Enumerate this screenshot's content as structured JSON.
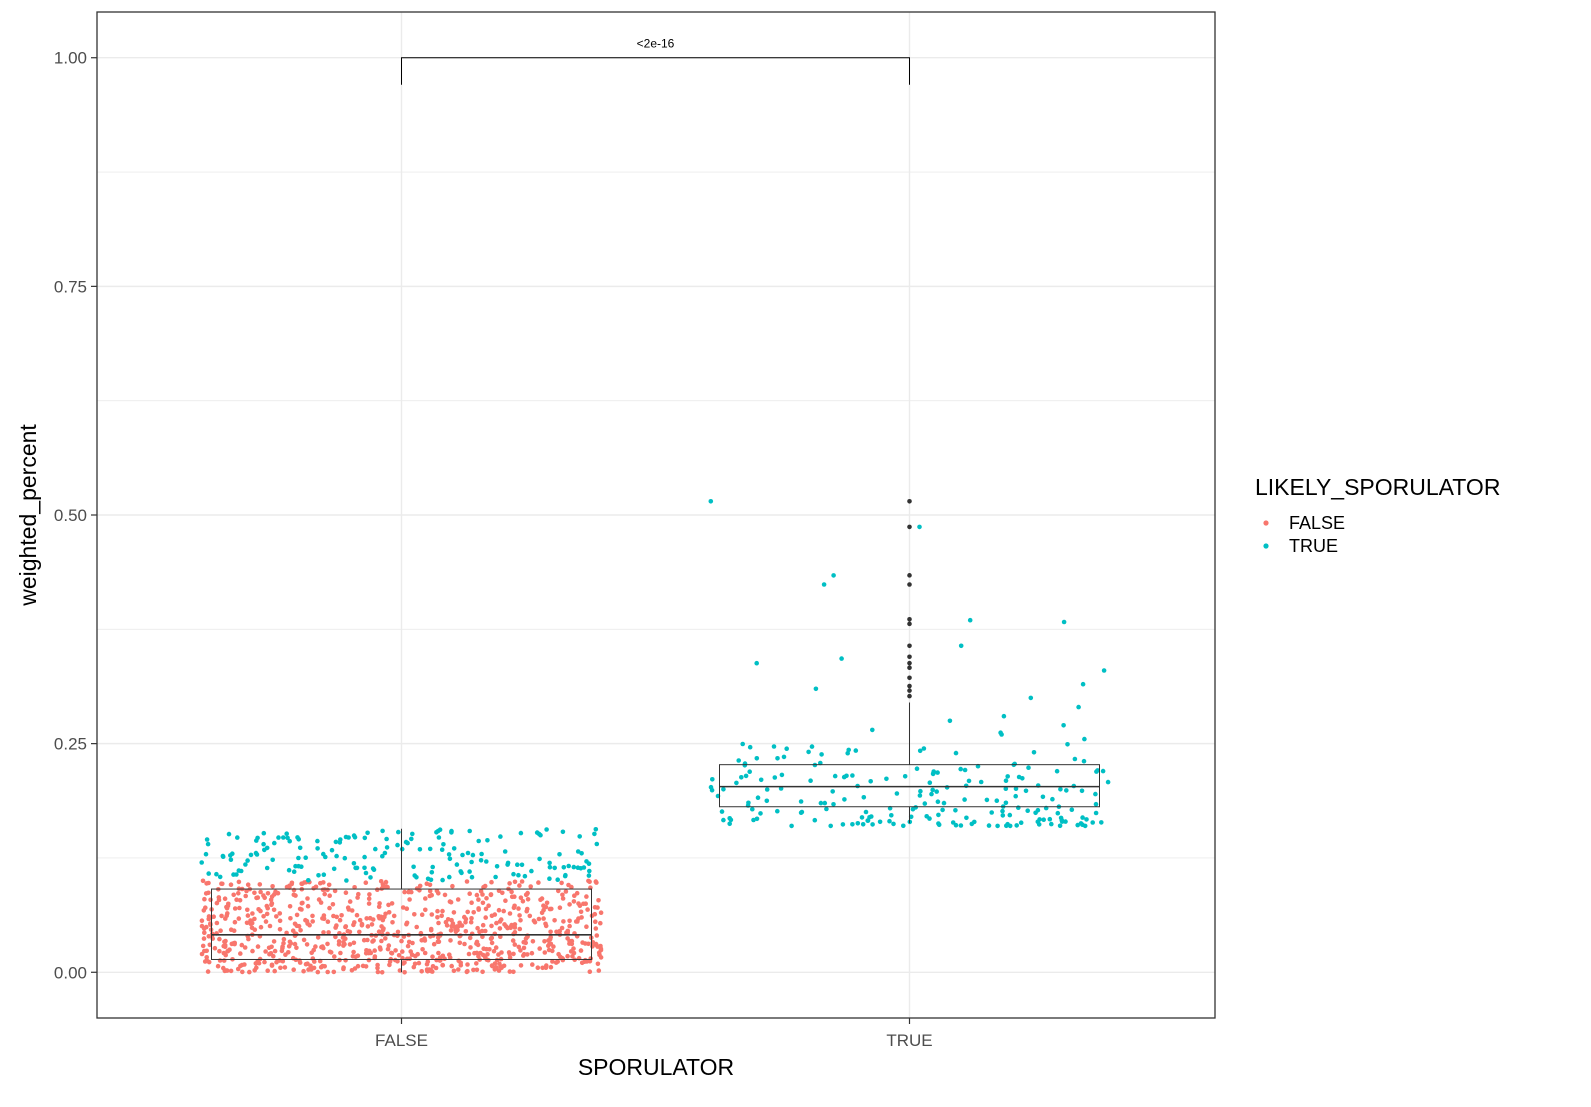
{
  "chart_data": {
    "type": "box",
    "xlabel": "SPORULATOR",
    "ylabel": "weighted_percent",
    "categories": [
      "FALSE",
      "TRUE"
    ],
    "ylim": [
      -0.05,
      1.05
    ],
    "yticks": [
      0.0,
      0.25,
      0.5,
      0.75,
      1.0
    ],
    "ytick_labels": [
      "0.00",
      "0.25",
      "0.50",
      "0.75",
      "1.00"
    ],
    "grid": true,
    "legend": {
      "title": "LIKELY_SPORULATOR",
      "placement": "right",
      "entries": [
        {
          "label": "FALSE",
          "color": "#F8766D"
        },
        {
          "label": "TRUE",
          "color": "#00BFC4"
        }
      ]
    },
    "boxes": [
      {
        "category": "FALSE",
        "q1": 0.014,
        "median": 0.041,
        "q3": 0.091,
        "whisker_low": 0.0,
        "whisker_high": 0.157,
        "outliers": []
      },
      {
        "category": "TRUE",
        "q1": 0.181,
        "median": 0.203,
        "q3": 0.227,
        "whisker_low": 0.163,
        "whisker_high": 0.295,
        "outliers": [
          0.302,
          0.308,
          0.313,
          0.322,
          0.333,
          0.338,
          0.345,
          0.357,
          0.381,
          0.386,
          0.424,
          0.434,
          0.487,
          0.515
        ]
      }
    ],
    "jitter_groups": [
      {
        "category": "FALSE",
        "likely": "FALSE",
        "count": 820,
        "range": [
          0.0,
          0.1
        ]
      },
      {
        "category": "FALSE",
        "likely": "TRUE",
        "count": 170,
        "range": [
          0.1,
          0.158
        ]
      },
      {
        "category": "TRUE",
        "likely": "TRUE",
        "count": 200,
        "range": [
          0.16,
          0.25
        ]
      }
    ],
    "jitter_extra_true": [
      0.27,
      0.265,
      0.26,
      0.28,
      0.3,
      0.31,
      0.315,
      0.33,
      0.338,
      0.343,
      0.357,
      0.385,
      0.383,
      0.424,
      0.434,
      0.487,
      0.515,
      0.29,
      0.275,
      0.262,
      0.255
    ],
    "annotation": {
      "text": "<2e-16",
      "y": 1.0,
      "from": "FALSE",
      "to": "TRUE"
    }
  }
}
